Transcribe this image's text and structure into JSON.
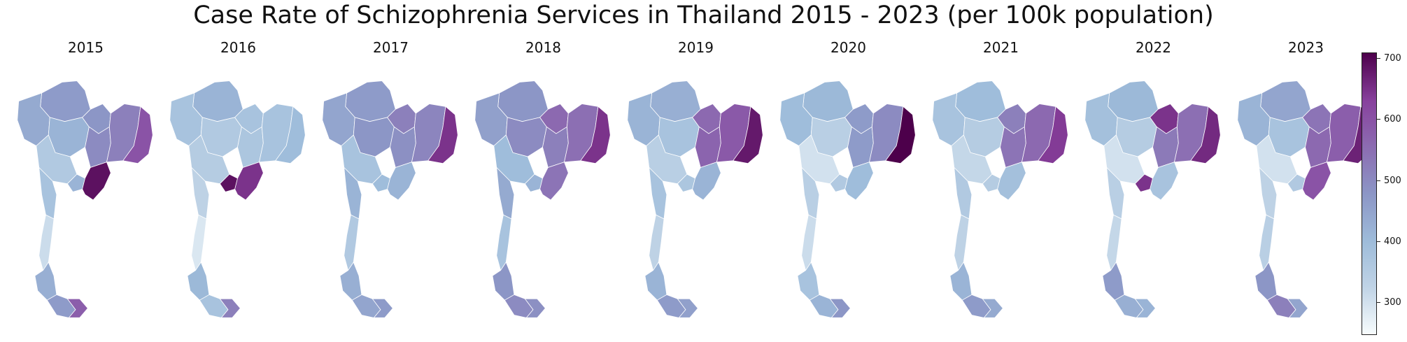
{
  "chart_data": {
    "type": "choropleth",
    "title": "Case Rate of Schizophrenia Services in Thailand 2015 - 2023 (per 100k population)",
    "unit": "per 100k population",
    "panels": [
      {
        "year": "2015",
        "values": {
          "north": 470,
          "northwest": 440,
          "upper_central": 420,
          "east_border": 480,
          "northeast_west": 500,
          "northeast_center": 520,
          "northeast_east": 600,
          "lower_central": 360,
          "west": 380,
          "east": 690,
          "bangkok": 420,
          "upper_south": 310,
          "mid_south": 430,
          "lower_south": 470,
          "deep_south": 580
        }
      },
      {
        "year": "2016",
        "values": {
          "north": 420,
          "northwest": 380,
          "upper_central": 360,
          "east_border": 380,
          "northeast_west": 370,
          "northeast_center": 380,
          "northeast_east": 400,
          "lower_central": 350,
          "west": 330,
          "east": 650,
          "bangkok": 690,
          "upper_south": 290,
          "mid_south": 410,
          "lower_south": 380,
          "deep_south": 520
        }
      },
      {
        "year": "2017",
        "values": {
          "north": 470,
          "northwest": 450,
          "upper_central": 480,
          "east_border": 520,
          "northeast_west": 490,
          "northeast_center": 510,
          "northeast_east": 650,
          "lower_central": 380,
          "west": 420,
          "east": 420,
          "bangkok": 400,
          "upper_south": 360,
          "mid_south": 430,
          "lower_south": 450,
          "deep_south": 470
        }
      },
      {
        "year": "2018",
        "values": {
          "north": 480,
          "northwest": 460,
          "upper_central": 500,
          "east_border": 560,
          "northeast_west": 520,
          "northeast_center": 550,
          "northeast_east": 650,
          "lower_central": 400,
          "west": 440,
          "east": 540,
          "bangkok": 420,
          "upper_south": 380,
          "mid_south": 480,
          "lower_south": 500,
          "deep_south": 490
        }
      },
      {
        "year": "2019",
        "values": {
          "north": 430,
          "northwest": 420,
          "upper_central": 380,
          "east_border": 560,
          "northeast_west": 570,
          "northeast_center": 590,
          "northeast_east": 680,
          "lower_central": 340,
          "west": 380,
          "east": 420,
          "bangkok": 370,
          "upper_south": 330,
          "mid_south": 420,
          "lower_south": 470,
          "deep_south": 460
        }
      },
      {
        "year": "2020",
        "values": {
          "north": 410,
          "northwest": 400,
          "upper_central": 340,
          "east_border": 470,
          "northeast_west": 470,
          "northeast_center": 500,
          "northeast_east": 710,
          "lower_central": 300,
          "west": 340,
          "east": 400,
          "bangkok": 360,
          "upper_south": 310,
          "mid_south": 380,
          "lower_south": 420,
          "deep_south": 480
        }
      },
      {
        "year": "2021",
        "values": {
          "north": 400,
          "northwest": 380,
          "upper_central": 350,
          "east_border": 520,
          "northeast_west": 540,
          "northeast_center": 560,
          "northeast_east": 640,
          "lower_central": 320,
          "west": 360,
          "east": 390,
          "bangkok": 350,
          "upper_south": 330,
          "mid_south": 420,
          "lower_south": 470,
          "deep_south": 440
        }
      },
      {
        "year": "2022",
        "values": {
          "north": 410,
          "northwest": 390,
          "upper_central": 350,
          "east_border": 650,
          "northeast_west": 530,
          "northeast_center": 550,
          "northeast_east": 660,
          "lower_central": 300,
          "west": 340,
          "east": 380,
          "bangkok": 650,
          "upper_south": 320,
          "mid_south": 470,
          "lower_south": 430,
          "deep_south": 420
        }
      },
      {
        "year": "2023",
        "values": {
          "north": 450,
          "northwest": 420,
          "upper_central": 380,
          "east_border": 540,
          "northeast_west": 560,
          "northeast_center": 580,
          "northeast_east": 670,
          "lower_central": 300,
          "west": 330,
          "east": 600,
          "bangkok": 360,
          "upper_south": 340,
          "mid_south": 480,
          "lower_south": 520,
          "deep_south": 450
        }
      }
    ],
    "colorbar": {
      "cmap": "BuPu",
      "colors": [
        "#f7fcfd",
        "#bfd3e6",
        "#9ebcda",
        "#8c96c6",
        "#8c6bb1",
        "#88419d",
        "#4d004b"
      ],
      "vmin": 250,
      "vmax": 710,
      "ticks": [
        300,
        400,
        500,
        600,
        700
      ],
      "tick_labels": [
        "300",
        "400",
        "500",
        "600",
        "700"
      ]
    }
  }
}
